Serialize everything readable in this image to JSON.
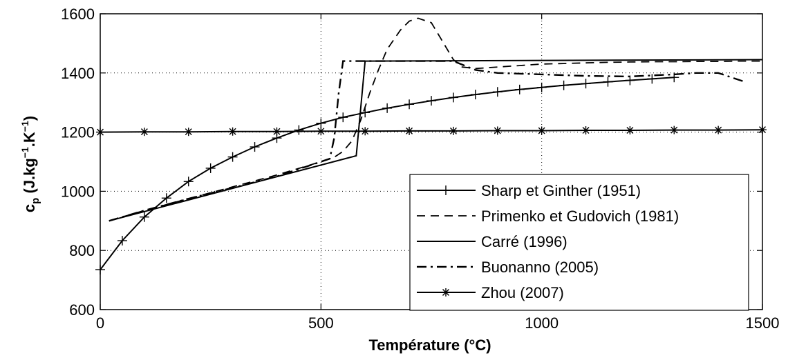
{
  "chart_data": {
    "type": "line",
    "xlabel": "Température (°C)",
    "ylabel": {
      "main": "c",
      "sub": "p",
      "rest_a": " (J.kg",
      "sup1": "−1",
      "rest_b": ".K",
      "sup2": "−1",
      "rest_c": ")"
    },
    "xlim": [
      0,
      1500
    ],
    "ylim": [
      600,
      1600
    ],
    "xticks": [
      "0",
      "500",
      "1000",
      "1500"
    ],
    "yticks": [
      "600",
      "800",
      "1000",
      "1200",
      "1400",
      "1600"
    ],
    "xtick_values": [
      0,
      500,
      1000,
      1500
    ],
    "ytick_values": [
      600,
      800,
      1000,
      1200,
      1400,
      1600
    ],
    "grid": true,
    "legend_position": "bottom-right",
    "series": [
      {
        "name": "Sharp et Ginther (1951)",
        "style": "solid",
        "marker": "plus",
        "x": [
          0,
          50,
          100,
          150,
          200,
          250,
          300,
          350,
          400,
          450,
          500,
          550,
          600,
          650,
          700,
          750,
          800,
          850,
          900,
          950,
          1000,
          1050,
          1100,
          1150,
          1200,
          1250,
          1300
        ],
        "y": [
          735,
          833,
          913,
          977,
          1033,
          1078,
          1116,
          1150,
          1180,
          1207,
          1230,
          1250,
          1266,
          1281,
          1294,
          1306,
          1317,
          1327,
          1336,
          1344,
          1351,
          1358,
          1364,
          1370,
          1375,
          1380,
          1385
        ]
      },
      {
        "name": "Primenko et Gudovich (1981)",
        "style": "dashed",
        "marker": "none",
        "x": [
          20,
          100,
          200,
          300,
          400,
          500,
          530,
          550,
          570,
          590,
          610,
          630,
          650,
          680,
          700,
          720,
          750,
          770,
          800,
          820,
          850,
          900,
          950,
          1000,
          1050,
          1100,
          1150,
          1200,
          1250,
          1300,
          1350,
          1400,
          1450,
          1500
        ],
        "y": [
          900,
          935,
          975,
          1015,
          1055,
          1100,
          1115,
          1135,
          1170,
          1240,
          1330,
          1410,
          1480,
          1545,
          1575,
          1585,
          1570,
          1520,
          1445,
          1420,
          1415,
          1420,
          1425,
          1430,
          1432,
          1434,
          1436,
          1437,
          1438,
          1438,
          1439,
          1439,
          1440,
          1440
        ]
      },
      {
        "name": "Carré (1996)",
        "style": "solid",
        "marker": "none",
        "x": [
          20,
          580,
          600,
          1500
        ],
        "y": [
          900,
          1120,
          1440,
          1445
        ]
      },
      {
        "name": "Buonanno (2005)",
        "style": "dashdot",
        "marker": "none",
        "x": [
          20,
          100,
          200,
          300,
          400,
          500,
          520,
          530,
          540,
          550,
          560,
          600,
          700,
          800,
          850,
          900,
          1000,
          1100,
          1200,
          1300,
          1350,
          1400,
          1460
        ],
        "y": [
          900,
          935,
          975,
          1012,
          1050,
          1100,
          1110,
          1180,
          1330,
          1440,
          1440,
          1440,
          1440,
          1440,
          1410,
          1400,
          1395,
          1390,
          1388,
          1395,
          1400,
          1400,
          1370
        ]
      },
      {
        "name": "Zhou (2007)",
        "style": "solid",
        "marker": "asterisk",
        "x": [
          0,
          100,
          200,
          300,
          400,
          500,
          600,
          700,
          800,
          900,
          1000,
          1100,
          1200,
          1300,
          1400,
          1500
        ],
        "y": [
          1200,
          1201,
          1201,
          1202,
          1202,
          1203,
          1203,
          1204,
          1204,
          1205,
          1205,
          1206,
          1206,
          1207,
          1207,
          1208
        ]
      }
    ]
  }
}
